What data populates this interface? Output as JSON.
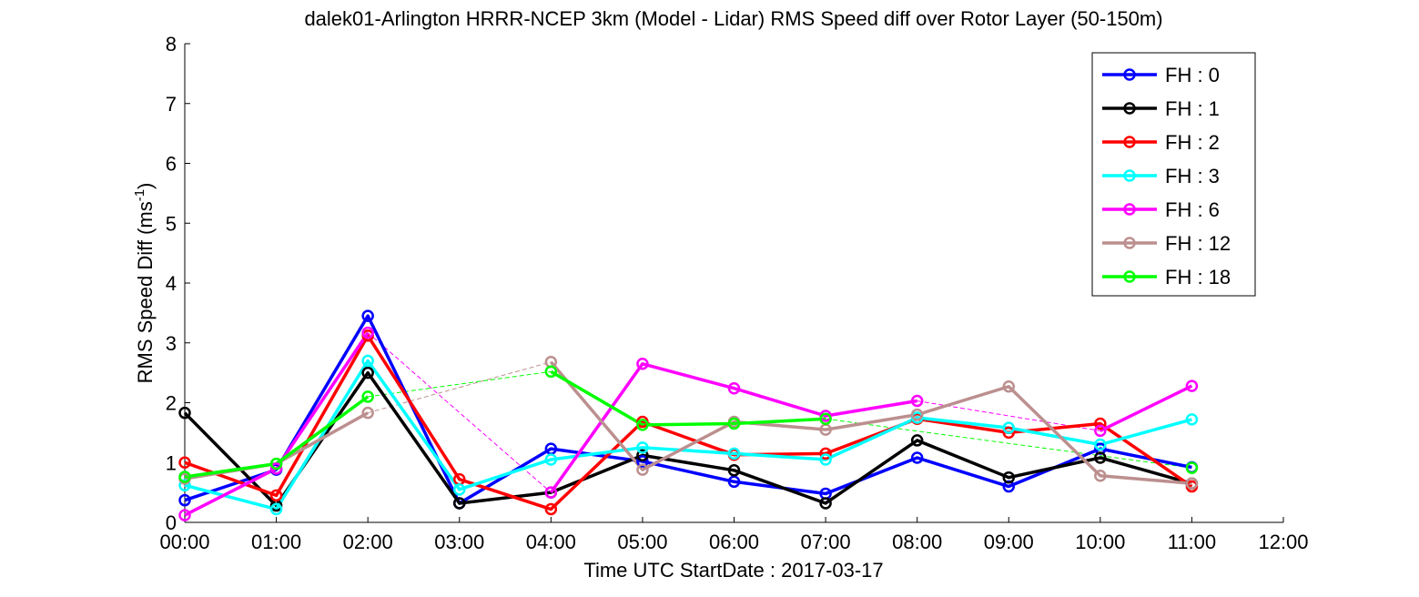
{
  "chart_data": {
    "type": "line",
    "title": "dalek01-Arlington HRRR-NCEP 3km (Model - Lidar) RMS Speed diff over Rotor Layer (50-150m)",
    "xlabel": "Time UTC    StartDate : 2017-03-17",
    "ylabel": {
      "main": "RMS Speed Diff (ms",
      "sup": "-1",
      "close": ")"
    },
    "xlim": [
      0,
      12
    ],
    "ylim": [
      0,
      8
    ],
    "x_ticks": [
      {
        "value": 0,
        "label": "00:00"
      },
      {
        "value": 1,
        "label": "01:00"
      },
      {
        "value": 2,
        "label": "02:00"
      },
      {
        "value": 3,
        "label": "03:00"
      },
      {
        "value": 4,
        "label": "04:00"
      },
      {
        "value": 5,
        "label": "05:00"
      },
      {
        "value": 6,
        "label": "06:00"
      },
      {
        "value": 7,
        "label": "07:00"
      },
      {
        "value": 8,
        "label": "08:00"
      },
      {
        "value": 9,
        "label": "09:00"
      },
      {
        "value": 10,
        "label": "10:00"
      },
      {
        "value": 11,
        "label": "11:00"
      },
      {
        "value": 12,
        "label": "12:00"
      }
    ],
    "y_ticks": [
      {
        "value": 0,
        "label": "0"
      },
      {
        "value": 1,
        "label": "1"
      },
      {
        "value": 2,
        "label": "2"
      },
      {
        "value": 3,
        "label": "3"
      },
      {
        "value": 4,
        "label": "4"
      },
      {
        "value": 5,
        "label": "5"
      },
      {
        "value": 6,
        "label": "6"
      },
      {
        "value": 7,
        "label": "7"
      },
      {
        "value": 8,
        "label": "8"
      }
    ],
    "grid": false,
    "legend_position": "top-right",
    "series": [
      {
        "name": "FH : 0",
        "color": "#0000ff",
        "points": [
          [
            0,
            0.37
          ],
          [
            1,
            0.88
          ],
          [
            2,
            3.45
          ],
          [
            3,
            0.32
          ],
          [
            4,
            1.23
          ],
          [
            5,
            1.02
          ],
          [
            6,
            0.68
          ],
          [
            7,
            0.48
          ],
          [
            8,
            1.08
          ],
          [
            9,
            0.6
          ],
          [
            10,
            1.23
          ],
          [
            11,
            0.92
          ]
        ],
        "gaps": []
      },
      {
        "name": "FH : 1",
        "color": "#000000",
        "points": [
          [
            0,
            1.83
          ],
          [
            1,
            0.28
          ],
          [
            2,
            2.5
          ],
          [
            3,
            0.32
          ],
          [
            4,
            0.5
          ],
          [
            5,
            1.12
          ],
          [
            6,
            0.87
          ],
          [
            7,
            0.32
          ],
          [
            8,
            1.37
          ],
          [
            9,
            0.75
          ],
          [
            10,
            1.08
          ],
          [
            11,
            0.65
          ]
        ],
        "gaps": []
      },
      {
        "name": "FH : 2",
        "color": "#ff0000",
        "points": [
          [
            0,
            1.0
          ],
          [
            1,
            0.45
          ],
          [
            2,
            3.12
          ],
          [
            3,
            0.72
          ],
          [
            4,
            0.22
          ],
          [
            5,
            1.68
          ],
          [
            6,
            1.13
          ],
          [
            7,
            1.15
          ],
          [
            8,
            1.73
          ],
          [
            9,
            1.5
          ],
          [
            10,
            1.65
          ],
          [
            11,
            0.6
          ]
        ],
        "gaps": []
      },
      {
        "name": "FH : 3",
        "color": "#00ffff",
        "points": [
          [
            0,
            0.62
          ],
          [
            1,
            0.22
          ],
          [
            2,
            2.7
          ],
          [
            3,
            0.55
          ],
          [
            4,
            1.05
          ],
          [
            5,
            1.25
          ],
          [
            6,
            1.15
          ],
          [
            7,
            1.05
          ],
          [
            8,
            1.75
          ],
          [
            9,
            1.58
          ],
          [
            10,
            1.3
          ],
          [
            11,
            1.72
          ]
        ],
        "gaps": []
      },
      {
        "name": "FH : 6",
        "color": "#ff00ff",
        "points": [
          [
            0,
            0.12
          ],
          [
            1,
            0.9
          ],
          [
            2,
            3.17
          ],
          [
            4,
            0.5
          ],
          [
            5,
            2.65
          ],
          [
            6,
            2.24
          ],
          [
            7,
            1.78
          ],
          [
            8,
            2.03
          ],
          [
            10,
            1.53
          ],
          [
            11,
            2.28
          ]
        ],
        "gaps": [
          [
            2,
            4
          ],
          [
            8,
            10
          ]
        ]
      },
      {
        "name": "FH : 12",
        "color": "#bc8f8f",
        "points": [
          [
            0,
            0.73
          ],
          [
            1,
            0.98
          ],
          [
            2,
            1.83
          ],
          [
            4,
            2.68
          ],
          [
            5,
            0.88
          ],
          [
            6,
            1.68
          ],
          [
            7,
            1.55
          ],
          [
            8,
            1.8
          ],
          [
            9,
            2.27
          ],
          [
            10,
            0.78
          ],
          [
            11,
            0.65
          ]
        ],
        "gaps": [
          [
            2,
            4
          ]
        ]
      },
      {
        "name": "FH : 18",
        "color": "#00ff00",
        "points": [
          [
            0,
            0.76
          ],
          [
            1,
            0.98
          ],
          [
            2,
            2.1
          ],
          [
            4,
            2.52
          ],
          [
            5,
            1.63
          ],
          [
            6,
            1.65
          ],
          [
            7,
            1.73
          ],
          [
            11,
            0.91
          ]
        ],
        "gaps": [
          [
            2,
            4
          ],
          [
            7,
            11
          ]
        ]
      }
    ]
  }
}
